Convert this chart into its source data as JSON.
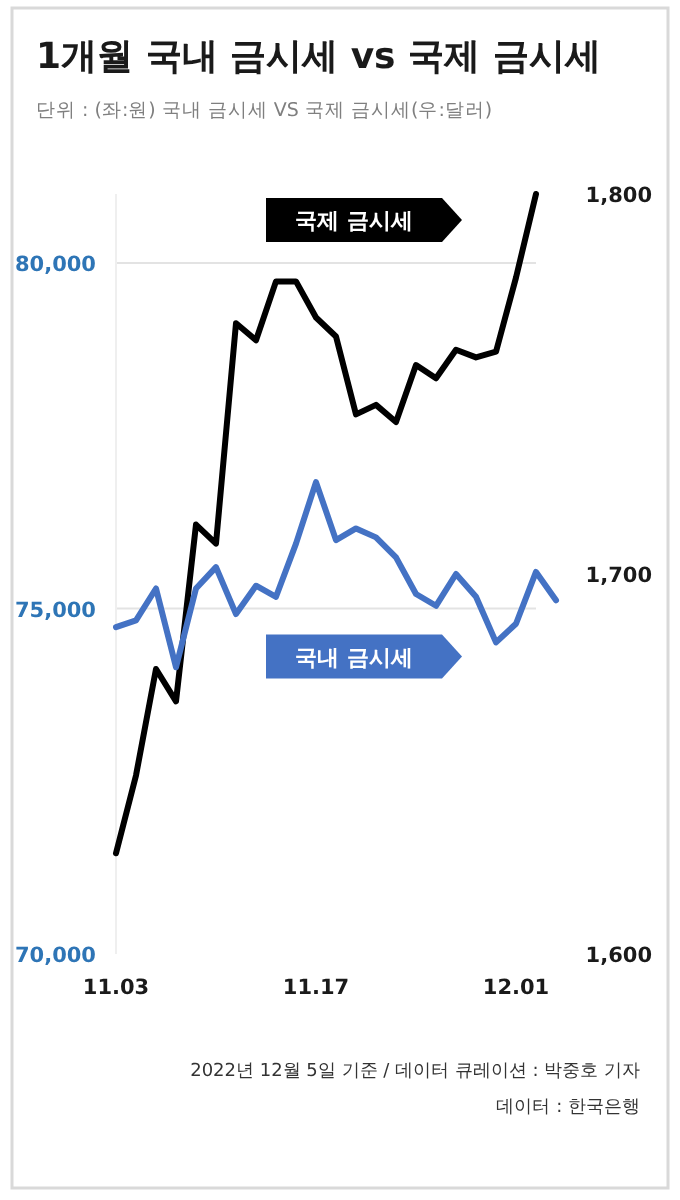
{
  "chart_data": {
    "type": "line",
    "title": "1개월 국내 금시세 vs 국제 금시세",
    "subtitle": "단위 : (좌:원) 국내 금시세  VS 국제 금시세(우:달러)",
    "categories": [
      "11.03",
      null,
      null,
      null,
      null,
      null,
      null,
      null,
      null,
      null,
      "11.17",
      null,
      null,
      null,
      null,
      null,
      null,
      null,
      null,
      null,
      "12.01",
      null,
      null
    ],
    "series": [
      {
        "name": "국제 금시세",
        "color": "#000000",
        "axis": "y2",
        "values": [
          1626.5,
          1647,
          1675,
          1666.5,
          1713,
          1708,
          1766,
          1761.5,
          1777,
          1777,
          1767.5,
          1762.5,
          1742,
          1744.5,
          1740,
          1755,
          1751.5,
          1759,
          1757,
          1758.5,
          1778,
          1800,
          null
        ]
      },
      {
        "name": "국내 금시세",
        "color": "#4472c4",
        "values": [
          74730,
          74830,
          75290,
          74150,
          75290,
          75600,
          74920,
          75330,
          75170,
          75940,
          76830,
          75990,
          76160,
          76030,
          75740,
          75210,
          75040,
          75500,
          75170,
          74510,
          74780,
          75530,
          75120
        ]
      }
    ],
    "ylim": [
      70000,
      81000
    ],
    "yticks": [
      {
        "value": 70000,
        "label": "70,000"
      },
      {
        "value": 75000,
        "label": "75,000"
      },
      {
        "value": 80000,
        "label": "80,000"
      }
    ],
    "y2lim": [
      1600,
      1800
    ],
    "y2ticks": [
      {
        "value": 1600,
        "label": "1,600"
      },
      {
        "value": 1700,
        "label": "1,700"
      },
      {
        "value": 1800,
        "label": "1,800"
      }
    ],
    "grid": "y",
    "annotations": [
      "2022년 12월 5일 기준 / 데이터 큐레이션 : 박중호 기자",
      "데이터 : 한국은행"
    ]
  }
}
